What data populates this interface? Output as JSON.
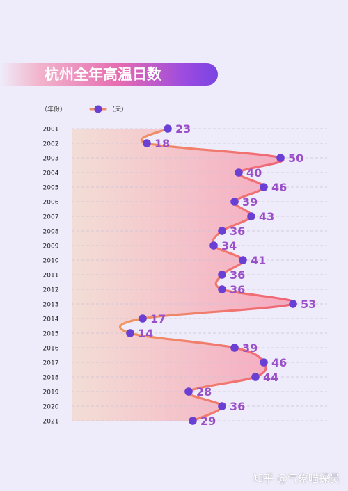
{
  "title": "杭州全年高温日数",
  "legend": {
    "year_label": "（年份）",
    "unit_label": "（天）"
  },
  "watermark": "知乎 @气象喵探员",
  "colors": {
    "line_start": "#f0a45a",
    "line_end": "#f0607a",
    "marker": "#6a3fd4",
    "value_text": "#9a4fc8",
    "fill_left": "#f3dcd2",
    "fill_right": "#f7a0b8"
  },
  "chart_data": {
    "type": "line",
    "orientation": "horizontal",
    "categories": [
      "2001",
      "2002",
      "2003",
      "2004",
      "2005",
      "2006",
      "2007",
      "2008",
      "2009",
      "2010",
      "2011",
      "2012",
      "2013",
      "2014",
      "2015",
      "2016",
      "2017",
      "2018",
      "2019",
      "2020",
      "2021"
    ],
    "series": [
      {
        "values": [
          23,
          18,
          50,
          40,
          46,
          39,
          43,
          36,
          34,
          41,
          36,
          36,
          53,
          17,
          14,
          39,
          46,
          44,
          28,
          36,
          29
        ]
      }
    ],
    "title": "杭州全年高温日数",
    "xlim": [
      0,
      55
    ],
    "grid": true
  }
}
